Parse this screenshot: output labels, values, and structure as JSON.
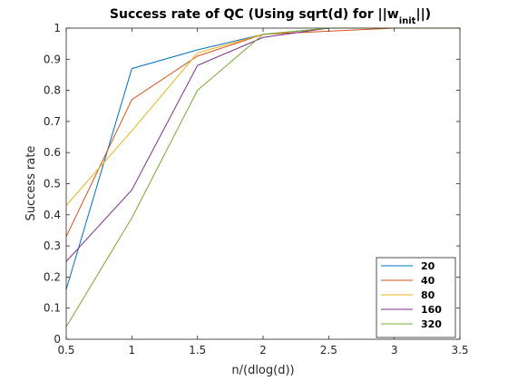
{
  "chart_data": {
    "type": "line",
    "title": {
      "main": "Success rate of QC (Using sqrt(d) for ||w",
      "subscript": "init",
      "suffix": "||)"
    },
    "xlabel": "n/(dlog(d))",
    "ylabel": "Success rate",
    "xlim": [
      0.5,
      3.5
    ],
    "ylim": [
      0,
      1
    ],
    "x_ticks": [
      0.5,
      1,
      1.5,
      2,
      2.5,
      3,
      3.5
    ],
    "x_tick_labels": [
      "0.5",
      "1",
      "1.5",
      "2",
      "2.5",
      "3",
      "3.5"
    ],
    "y_ticks": [
      0,
      0.1,
      0.2,
      0.3,
      0.4,
      0.5,
      0.6,
      0.7,
      0.8,
      0.9,
      1
    ],
    "y_tick_labels": [
      "0",
      "0.1",
      "0.2",
      "0.3",
      "0.4",
      "0.5",
      "0.6",
      "0.7",
      "0.8",
      "0.9",
      "1"
    ],
    "grid": false,
    "legend_position": "bottom-right",
    "x": [
      0.5,
      1,
      1.5,
      2,
      2.5,
      3,
      3.5
    ],
    "series": [
      {
        "name": "20",
        "color": "#0072BD",
        "values": [
          0.16,
          0.87,
          0.93,
          0.98,
          1.0,
          1.0,
          1.0
        ]
      },
      {
        "name": "40",
        "color": "#D95319",
        "values": [
          0.33,
          0.77,
          0.91,
          0.98,
          0.99,
          1.0,
          1.0
        ]
      },
      {
        "name": "80",
        "color": "#EDB120",
        "values": [
          0.43,
          0.67,
          0.92,
          0.98,
          1.0,
          1.0,
          1.0
        ]
      },
      {
        "name": "160",
        "color": "#7E2F8E",
        "values": [
          0.25,
          0.48,
          0.88,
          0.97,
          1.0,
          1.0,
          1.0
        ]
      },
      {
        "name": "320",
        "color": "#77AC30",
        "values": [
          0.04,
          0.39,
          0.8,
          0.98,
          1.0,
          1.0,
          1.0
        ]
      }
    ]
  }
}
